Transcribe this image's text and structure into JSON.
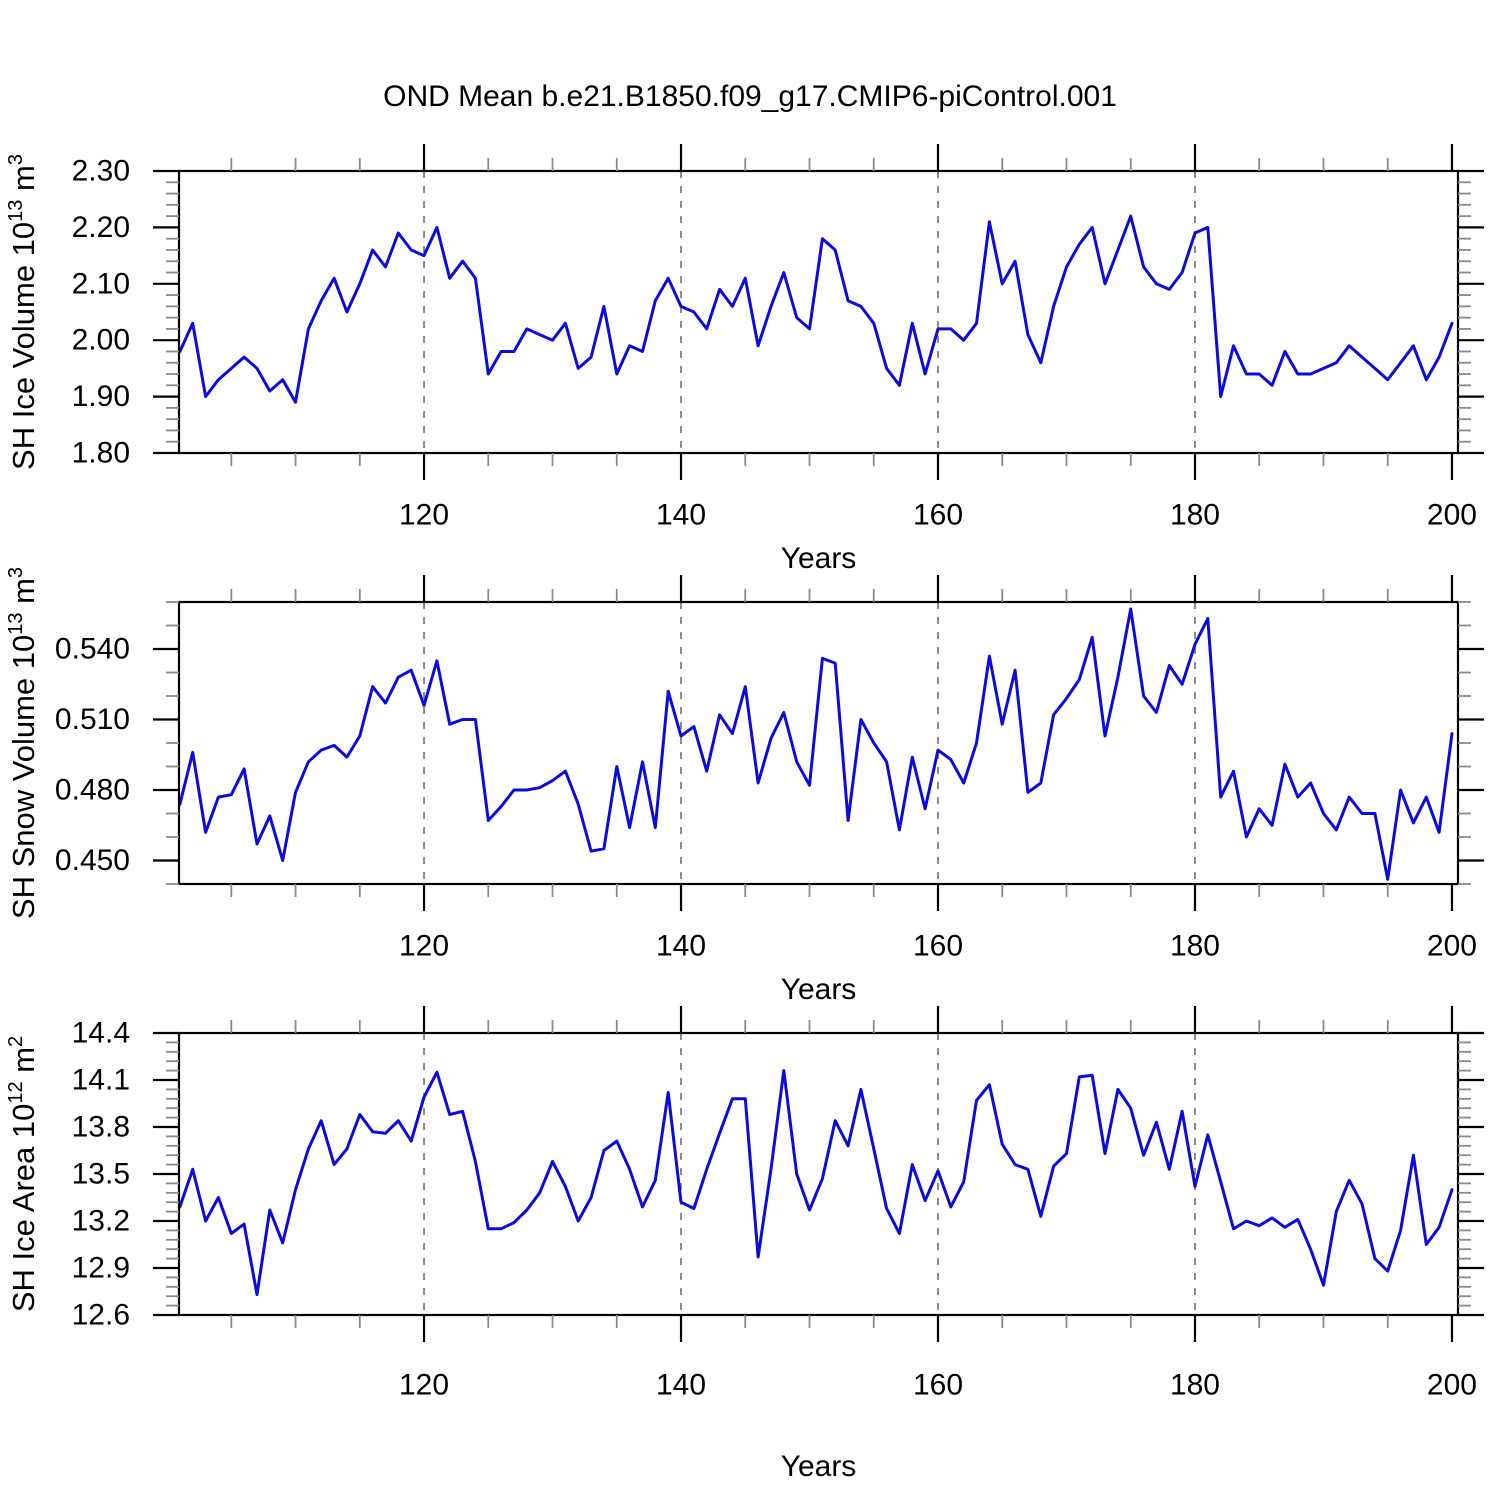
{
  "title": "OND Mean b.e21.B1850.f09_g17.CMIP6-piControl.001",
  "colors": {
    "line": "#0b0be0",
    "axis": "#000000",
    "minor_tick": "#8a8a8a",
    "grid": "#6f6f6f",
    "text": "#000000",
    "background": "#ffffff"
  },
  "x_axis": {
    "label": "Years",
    "major_ticks": [
      120,
      140,
      160,
      180,
      200
    ],
    "major_tick_labels": [
      "120",
      "140",
      "160",
      "180",
      "200"
    ],
    "minor_step": 5,
    "range": [
      100.93,
      200.47
    ],
    "grid_at": [
      120,
      140,
      160,
      180
    ]
  },
  "years": [
    101,
    102,
    103,
    104,
    105,
    106,
    107,
    108,
    109,
    110,
    111,
    112,
    113,
    114,
    115,
    116,
    117,
    118,
    119,
    120,
    121,
    122,
    123,
    124,
    125,
    126,
    127,
    128,
    129,
    130,
    131,
    132,
    133,
    134,
    135,
    136,
    137,
    138,
    139,
    140,
    141,
    142,
    143,
    144,
    145,
    146,
    147,
    148,
    149,
    150,
    151,
    152,
    153,
    154,
    155,
    156,
    157,
    158,
    159,
    160,
    161,
    162,
    163,
    164,
    165,
    166,
    167,
    168,
    169,
    170,
    171,
    172,
    173,
    174,
    175,
    176,
    177,
    178,
    179,
    180,
    181,
    182,
    183,
    184,
    185,
    186,
    187,
    188,
    189,
    190,
    191,
    192,
    193,
    194,
    195,
    196,
    197,
    198,
    199,
    200
  ],
  "chart_data": [
    {
      "type": "line",
      "id": "sh-ice-volume",
      "ylabel": "SH Ice Volume 10¹³ m³",
      "ylabel_parts": [
        {
          "text": "SH Ice Volume 10",
          "sup": false
        },
        {
          "text": "13",
          "sup": true
        },
        {
          "text": " m",
          "sup": false
        },
        {
          "text": "3",
          "sup": true
        }
      ],
      "ylim": [
        1.8,
        2.3
      ],
      "yticks": [
        1.8,
        1.9,
        2.0,
        2.1,
        2.2,
        2.3
      ],
      "ytick_labels": [
        "1.80",
        "1.90",
        "2.00",
        "2.10",
        "2.20",
        "2.30"
      ],
      "y_minor_step": 0.02,
      "xlabel": "Years",
      "values": [
        1.98,
        2.03,
        1.9,
        1.93,
        1.95,
        1.97,
        1.95,
        1.91,
        1.93,
        1.89,
        2.02,
        2.07,
        2.11,
        2.05,
        2.1,
        2.16,
        2.13,
        2.19,
        2.16,
        2.15,
        2.2,
        2.11,
        2.14,
        2.11,
        1.94,
        1.98,
        1.98,
        2.02,
        2.01,
        2.0,
        2.03,
        1.95,
        1.97,
        2.06,
        1.94,
        1.99,
        1.98,
        2.07,
        2.11,
        2.06,
        2.05,
        2.02,
        2.09,
        2.06,
        2.11,
        1.99,
        2.06,
        2.12,
        2.04,
        2.02,
        2.18,
        2.16,
        2.07,
        2.06,
        2.03,
        1.95,
        1.92,
        2.03,
        1.94,
        2.02,
        2.02,
        2.0,
        2.03,
        2.21,
        2.1,
        2.14,
        2.01,
        1.96,
        2.06,
        2.13,
        2.17,
        2.2,
        2.1,
        2.16,
        2.22,
        2.13,
        2.1,
        2.09,
        2.12,
        2.19,
        2.2,
        1.9,
        1.99,
        1.94,
        1.94,
        1.92,
        1.98,
        1.94,
        1.94,
        1.95,
        1.96,
        1.99,
        1.97,
        1.95,
        1.93,
        1.96,
        1.99,
        1.93,
        1.97,
        2.03
      ]
    },
    {
      "type": "line",
      "id": "sh-snow-volume",
      "ylabel": "SH Snow Volume 10¹³ m³",
      "ylabel_parts": [
        {
          "text": "SH Snow Volume 10",
          "sup": false
        },
        {
          "text": "13",
          "sup": true
        },
        {
          "text": " m",
          "sup": false
        },
        {
          "text": "3",
          "sup": true
        }
      ],
      "ylim": [
        0.44,
        0.56
      ],
      "yticks": [
        0.45,
        0.48,
        0.51,
        0.54
      ],
      "ytick_labels": [
        "0.450",
        "0.480",
        "0.510",
        "0.540"
      ],
      "y_minor_step": 0.01,
      "xlabel": "Years",
      "values": [
        0.474,
        0.496,
        0.462,
        0.477,
        0.478,
        0.489,
        0.457,
        0.469,
        0.45,
        0.479,
        0.492,
        0.497,
        0.499,
        0.494,
        0.503,
        0.524,
        0.517,
        0.528,
        0.531,
        0.516,
        0.535,
        0.508,
        0.51,
        0.51,
        0.467,
        0.473,
        0.48,
        0.48,
        0.481,
        0.484,
        0.488,
        0.474,
        0.454,
        0.455,
        0.49,
        0.464,
        0.492,
        0.464,
        0.522,
        0.503,
        0.507,
        0.488,
        0.512,
        0.504,
        0.524,
        0.483,
        0.502,
        0.513,
        0.492,
        0.482,
        0.536,
        0.534,
        0.467,
        0.51,
        0.5,
        0.492,
        0.463,
        0.494,
        0.472,
        0.497,
        0.493,
        0.483,
        0.5,
        0.537,
        0.508,
        0.531,
        0.479,
        0.483,
        0.512,
        0.519,
        0.527,
        0.545,
        0.503,
        0.528,
        0.557,
        0.52,
        0.513,
        0.533,
        0.525,
        0.542,
        0.553,
        0.477,
        0.488,
        0.46,
        0.472,
        0.465,
        0.491,
        0.477,
        0.483,
        0.47,
        0.463,
        0.477,
        0.47,
        0.47,
        0.442,
        0.48,
        0.466,
        0.477,
        0.462,
        0.504
      ]
    },
    {
      "type": "line",
      "id": "sh-ice-area",
      "ylabel": "SH Ice Area 10¹² m²",
      "ylabel_parts": [
        {
          "text": "SH Ice Area 10",
          "sup": false
        },
        {
          "text": "12",
          "sup": true
        },
        {
          "text": " m",
          "sup": false
        },
        {
          "text": "2",
          "sup": true
        }
      ],
      "ylim": [
        12.6,
        14.4
      ],
      "yticks": [
        12.6,
        12.9,
        13.2,
        13.5,
        13.8,
        14.1,
        14.4
      ],
      "ytick_labels": [
        "12.6",
        "12.9",
        "13.2",
        "13.5",
        "13.8",
        "14.1",
        "14.4"
      ],
      "y_minor_step": 0.06,
      "xlabel": "Years",
      "values": [
        13.29,
        13.53,
        13.2,
        13.35,
        13.12,
        13.18,
        12.73,
        13.27,
        13.06,
        13.4,
        13.66,
        13.84,
        13.56,
        13.66,
        13.88,
        13.77,
        13.76,
        13.84,
        13.71,
        13.99,
        14.15,
        13.88,
        13.9,
        13.58,
        13.15,
        13.15,
        13.19,
        13.27,
        13.38,
        13.58,
        13.42,
        13.2,
        13.35,
        13.65,
        13.71,
        13.53,
        13.29,
        13.46,
        14.02,
        13.32,
        13.28,
        13.53,
        13.76,
        13.98,
        13.98,
        12.97,
        13.53,
        14.16,
        13.5,
        13.27,
        13.47,
        13.84,
        13.68,
        14.04,
        13.66,
        13.28,
        13.12,
        13.56,
        13.33,
        13.52,
        13.29,
        13.45,
        13.97,
        14.07,
        13.69,
        13.56,
        13.53,
        13.23,
        13.55,
        13.63,
        14.12,
        14.13,
        13.63,
        14.04,
        13.92,
        13.62,
        13.83,
        13.53,
        13.9,
        13.42,
        13.75,
        13.45,
        13.15,
        13.2,
        13.17,
        13.22,
        13.16,
        13.21,
        13.02,
        12.79,
        13.26,
        13.46,
        13.31,
        12.96,
        12.88,
        13.14,
        13.62,
        13.05,
        13.16,
        13.4
      ]
    }
  ]
}
